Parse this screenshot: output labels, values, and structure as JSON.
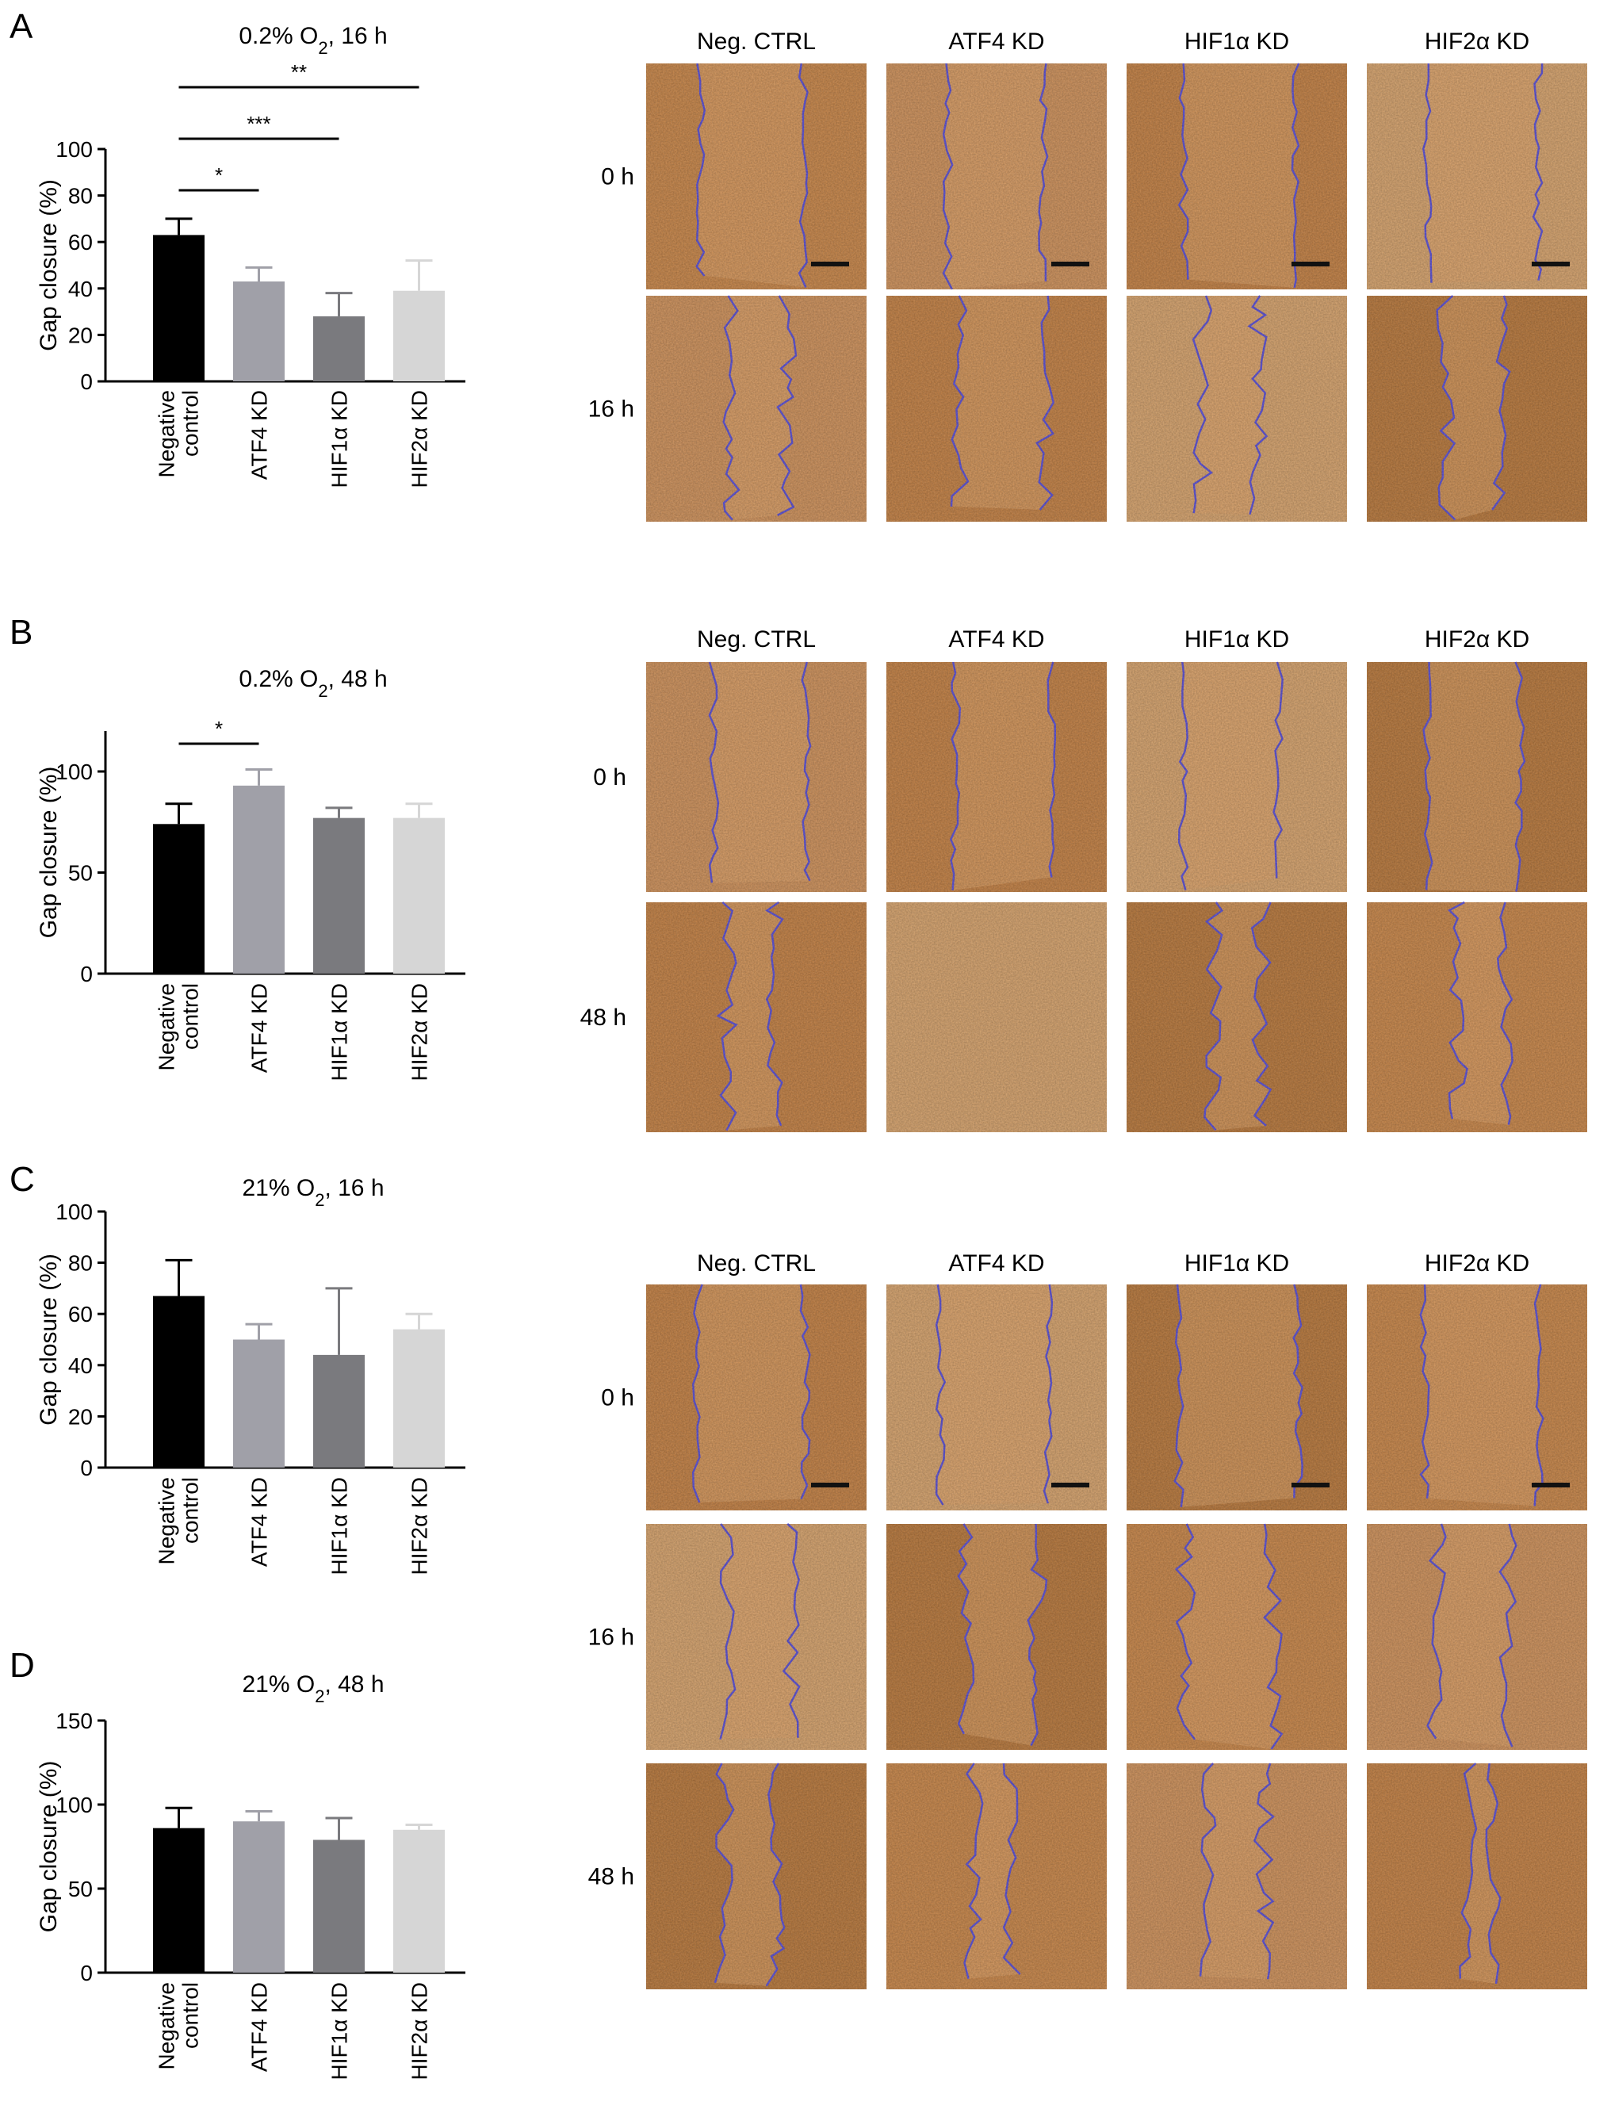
{
  "figure": {
    "panels": [
      {
        "letter": "A"
      },
      {
        "letter": "B"
      },
      {
        "letter": "C"
      },
      {
        "letter": "D"
      }
    ],
    "micro_blocks": [
      {
        "columns": [
          "Neg. CTRL",
          "ATF4 KD",
          "HIF1α KD",
          "HIF2α KD"
        ],
        "rows": [
          "0 h",
          "16 h"
        ]
      },
      {
        "columns": [
          "Neg. CTRL",
          "ATF4 KD",
          "HIF1α KD",
          "HIF2α KD"
        ],
        "rows": [
          "0 h",
          "48 h"
        ]
      },
      {
        "columns": [
          "Neg. CTRL",
          "ATF4 KD",
          "HIF1α KD",
          "HIF2α KD"
        ],
        "rows": [
          "0 h",
          "16 h",
          "48 h"
        ]
      }
    ],
    "colors": {
      "negative_control": "#000000",
      "atf4": "#a0a0a8",
      "hif1a": "#7a7a7e",
      "hif2a": "#d6d6d6",
      "tissue": "#c98648",
      "outline": "#5a4fd6"
    }
  },
  "chart_data": [
    {
      "type": "bar",
      "title": "0.2% O2, 16 h",
      "title_main": "0.2% O",
      "title_sub": "2",
      "title_rest": ", 16 h",
      "ylabel": "Gap closure (%)",
      "ylim": [
        0,
        100
      ],
      "yticks": [
        0,
        20,
        40,
        60,
        80,
        100
      ],
      "categories": [
        "Negative control",
        "ATF4 KD",
        "HIF1α KD",
        "HIF2α KD"
      ],
      "category_lines": [
        [
          "Negative",
          "control"
        ],
        [
          "ATF4 KD"
        ],
        [
          "HIF1α KD"
        ],
        [
          "HIF2α KD"
        ]
      ],
      "values": [
        63,
        43,
        28,
        39
      ],
      "errors": [
        7,
        6,
        10,
        13
      ],
      "significance": [
        {
          "from": 0,
          "to": 1,
          "label": "*"
        },
        {
          "from": 0,
          "to": 2,
          "label": "***"
        },
        {
          "from": 0,
          "to": 3,
          "label": "**"
        }
      ]
    },
    {
      "type": "bar",
      "title": "0.2% O2, 48 h",
      "title_main": "0.2% O",
      "title_sub": "2",
      "title_rest": ", 48 h",
      "ylabel": "Gap closure (%)",
      "ylim": [
        0,
        120
      ],
      "yticks": [
        0,
        50,
        100
      ],
      "categories": [
        "Negative control",
        "ATF4 KD",
        "HIF1α KD",
        "HIF2α KD"
      ],
      "category_lines": [
        [
          "Negative",
          "control"
        ],
        [
          "ATF4 KD"
        ],
        [
          "HIF1α KD"
        ],
        [
          "HIF2α KD"
        ]
      ],
      "values": [
        74,
        93,
        77,
        77
      ],
      "errors": [
        10,
        8,
        5,
        7
      ],
      "significance": [
        {
          "from": 0,
          "to": 1,
          "label": "*"
        }
      ]
    },
    {
      "type": "bar",
      "title": "21% O2, 16 h",
      "title_main": "21% O",
      "title_sub": "2",
      "title_rest": ", 16 h",
      "ylabel": "Gap closure (%)",
      "ylim": [
        0,
        100
      ],
      "yticks": [
        0,
        20,
        40,
        60,
        80,
        100
      ],
      "categories": [
        "Negative control",
        "ATF4 KD",
        "HIF1α KD",
        "HIF2α KD"
      ],
      "category_lines": [
        [
          "Negative",
          "control"
        ],
        [
          "ATF4 KD"
        ],
        [
          "HIF1α KD"
        ],
        [
          "HIF2α KD"
        ]
      ],
      "values": [
        67,
        50,
        44,
        54
      ],
      "errors": [
        14,
        6,
        26,
        6
      ],
      "significance": []
    },
    {
      "type": "bar",
      "title": "21% O2, 48 h",
      "title_main": "21% O",
      "title_sub": "2",
      "title_rest": ", 48 h",
      "ylabel": "Gap closure (%)",
      "ylim": [
        0,
        150
      ],
      "yticks": [
        0,
        50,
        100,
        150
      ],
      "categories": [
        "Negative control",
        "ATF4 KD",
        "HIF1α KD",
        "HIF2α KD"
      ],
      "category_lines": [
        [
          "Negative",
          "control"
        ],
        [
          "ATF4 KD"
        ],
        [
          "HIF1α KD"
        ],
        [
          "HIF2α KD"
        ]
      ],
      "values": [
        86,
        90,
        79,
        85
      ],
      "errors": [
        12,
        6,
        13,
        3
      ],
      "significance": []
    }
  ]
}
